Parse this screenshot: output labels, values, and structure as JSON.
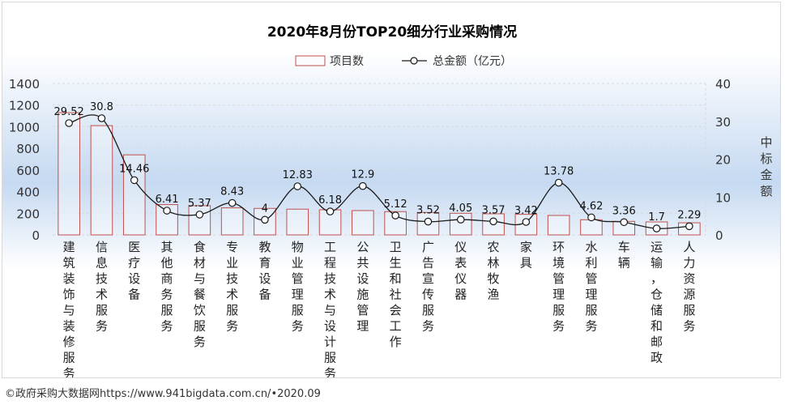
{
  "chart_data": {
    "type": "bar",
    "title": "2020年8月份TOP20细分行业采购情况",
    "legend": {
      "bar_label": "项目数",
      "line_label": "总金额（亿元）",
      "placement": "top-center"
    },
    "left_axis": {
      "range": [
        0,
        1400
      ],
      "ticks": [
        "0",
        "200",
        "400",
        "600",
        "800",
        "1000",
        "1200",
        "1400"
      ]
    },
    "right_axis": {
      "label": "中标金额",
      "range": [
        0,
        40
      ],
      "ticks": [
        "0",
        "10",
        "20",
        "30",
        "40"
      ]
    },
    "categories": [
      "建筑装饰与装修服务",
      "信息技术服务",
      "医疗设备",
      "其他商务服务",
      "食材与餐饮服务",
      "专业技术服务",
      "教育设备",
      "物业管理服务",
      "工程技术与设计服务",
      "公共设施管理",
      "卫生和社会工作",
      "广告宣传服务",
      "仪表仪器",
      "农林牧渔",
      "家具",
      "环境管理服务",
      "水利管理服务",
      "车辆",
      "运输，仓储和邮政",
      "人力资源服务"
    ],
    "series": [
      {
        "name": "项目数",
        "kind": "bar",
        "values": [
          1130,
          1010,
          740,
          280,
          270,
          250,
          245,
          238,
          232,
          225,
          215,
          207,
          200,
          195,
          190,
          180,
          140,
          125,
          120,
          112
        ]
      },
      {
        "name": "总金额（亿元）",
        "kind": "line",
        "axis": "right",
        "values": [
          29.52,
          30.8,
          14.46,
          6.41,
          5.37,
          8.43,
          4,
          12.83,
          6.18,
          12.9,
          5.12,
          3.52,
          4.05,
          3.57,
          3.42,
          13.78,
          4.62,
          3.36,
          1.7,
          2.29
        ],
        "labels": [
          "29.52",
          "30.8",
          "14.46",
          "6.41",
          "5.37",
          "8.43",
          "4",
          "12.83",
          "6.18",
          "12.9",
          "5.12",
          "3.52",
          "4.05",
          "3.57",
          "3.42",
          "13.78",
          "4.62",
          "3.36",
          "1.7",
          "2.29"
        ]
      }
    ],
    "colors": {
      "bar_stroke": "#c0504d",
      "line": "#1a1a1a",
      "marker_fill": "#ffffff",
      "grid": "#d9d9d9",
      "gradient": "#c5d9f1"
    }
  },
  "footer": {
    "source": "©政府采购大数据网https://www.941bigdata.com.cn/•2020.09"
  }
}
